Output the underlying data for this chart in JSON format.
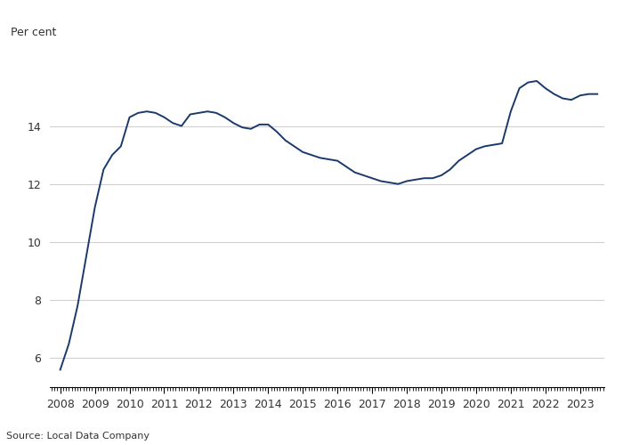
{
  "title": "",
  "ylabel": "Per cent",
  "source": "Source: Local Data Company",
  "line_color": "#1a3a6b",
  "background_color": "#ffffff",
  "grid_color": "#d0d0d0",
  "text_color": "#333333",
  "ylim": [
    5.0,
    16.5
  ],
  "yticks": [
    6,
    8,
    10,
    12,
    14
  ],
  "x_start_year": 2008,
  "x_end_year": 2023,
  "data": [
    [
      2008.0,
      5.6
    ],
    [
      2008.25,
      6.5
    ],
    [
      2008.5,
      7.8
    ],
    [
      2008.75,
      9.5
    ],
    [
      2009.0,
      11.2
    ],
    [
      2009.25,
      12.5
    ],
    [
      2009.5,
      13.0
    ],
    [
      2009.75,
      13.3
    ],
    [
      2010.0,
      14.3
    ],
    [
      2010.25,
      14.45
    ],
    [
      2010.5,
      14.5
    ],
    [
      2010.75,
      14.45
    ],
    [
      2011.0,
      14.3
    ],
    [
      2011.25,
      14.1
    ],
    [
      2011.5,
      14.0
    ],
    [
      2011.75,
      14.4
    ],
    [
      2012.0,
      14.45
    ],
    [
      2012.25,
      14.5
    ],
    [
      2012.5,
      14.45
    ],
    [
      2012.75,
      14.3
    ],
    [
      2013.0,
      14.1
    ],
    [
      2013.25,
      13.95
    ],
    [
      2013.5,
      13.9
    ],
    [
      2013.75,
      14.05
    ],
    [
      2014.0,
      14.05
    ],
    [
      2014.25,
      13.8
    ],
    [
      2014.5,
      13.5
    ],
    [
      2014.75,
      13.3
    ],
    [
      2015.0,
      13.1
    ],
    [
      2015.25,
      13.0
    ],
    [
      2015.5,
      12.9
    ],
    [
      2015.75,
      12.85
    ],
    [
      2016.0,
      12.8
    ],
    [
      2016.25,
      12.6
    ],
    [
      2016.5,
      12.4
    ],
    [
      2016.75,
      12.3
    ],
    [
      2017.0,
      12.2
    ],
    [
      2017.25,
      12.1
    ],
    [
      2017.5,
      12.05
    ],
    [
      2017.75,
      12.0
    ],
    [
      2018.0,
      12.1
    ],
    [
      2018.25,
      12.15
    ],
    [
      2018.5,
      12.2
    ],
    [
      2018.75,
      12.2
    ],
    [
      2019.0,
      12.3
    ],
    [
      2019.25,
      12.5
    ],
    [
      2019.5,
      12.8
    ],
    [
      2019.75,
      13.0
    ],
    [
      2020.0,
      13.2
    ],
    [
      2020.25,
      13.3
    ],
    [
      2020.5,
      13.35
    ],
    [
      2020.75,
      13.4
    ],
    [
      2021.0,
      14.5
    ],
    [
      2021.25,
      15.3
    ],
    [
      2021.5,
      15.5
    ],
    [
      2021.75,
      15.55
    ],
    [
      2022.0,
      15.3
    ],
    [
      2022.25,
      15.1
    ],
    [
      2022.5,
      14.95
    ],
    [
      2022.75,
      14.9
    ],
    [
      2023.0,
      15.05
    ],
    [
      2023.25,
      15.1
    ],
    [
      2023.5,
      15.1
    ]
  ]
}
